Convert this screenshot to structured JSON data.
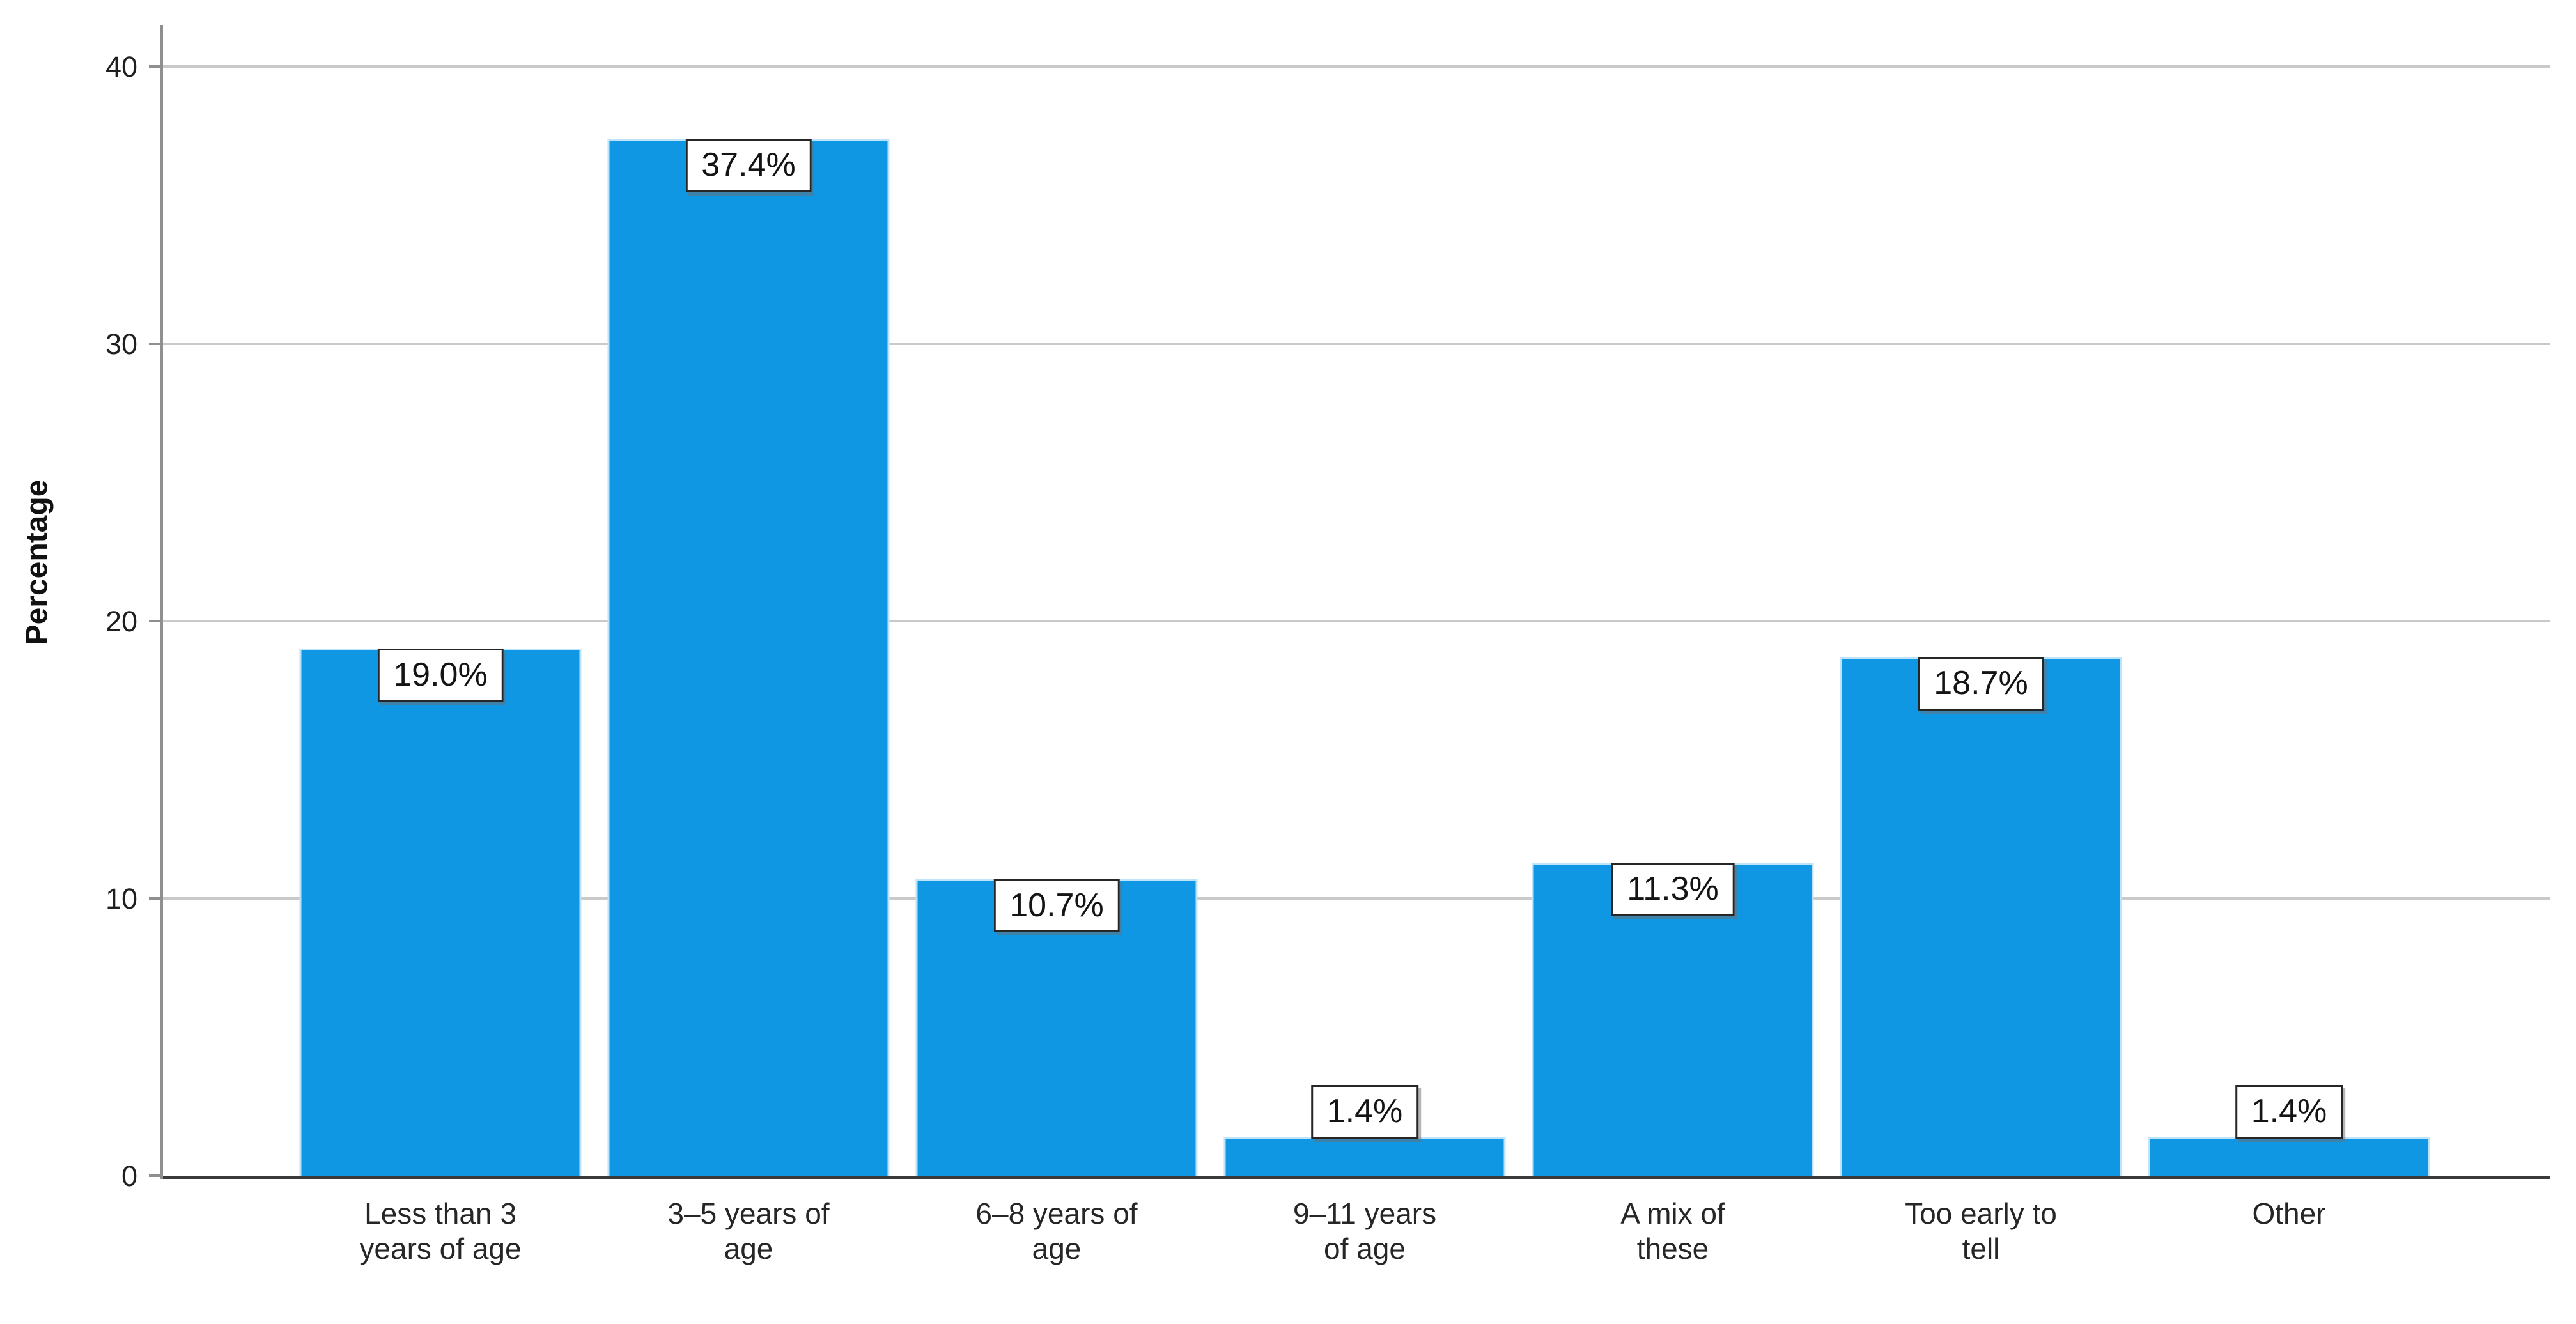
{
  "chart_data": {
    "type": "bar",
    "title": "",
    "xlabel": "",
    "ylabel": "Percentage",
    "categories": [
      "Less than 3\nyears of age",
      "3–5 years of\nage",
      "6–8 years of\nage",
      "9–11 years\nof age",
      "A mix of\nthese",
      "Too early to\ntell",
      "Other"
    ],
    "values": [
      19.0,
      37.4,
      10.7,
      1.4,
      11.3,
      18.7,
      1.4
    ],
    "value_labels": [
      "19.0%",
      "37.4%",
      "10.7%",
      "1.4%",
      "11.3%",
      "18.7%",
      "1.4%"
    ],
    "yticks": [
      0,
      10,
      20,
      30,
      40
    ],
    "ylim": [
      0,
      41.5
    ],
    "grid": "horizontal",
    "legend": "none",
    "colors": {
      "bar_fill": "#0f97e4",
      "bar_edge": "#bfe4f9",
      "gridline": "#c9c9c9",
      "y_axis": "#8f8f8f",
      "x_axis": "#3a3a3a",
      "label_box_bg": "#ffffff",
      "label_box_border": "#262626",
      "text": "#1a1a1a"
    },
    "label_box_above_threshold": 4
  }
}
